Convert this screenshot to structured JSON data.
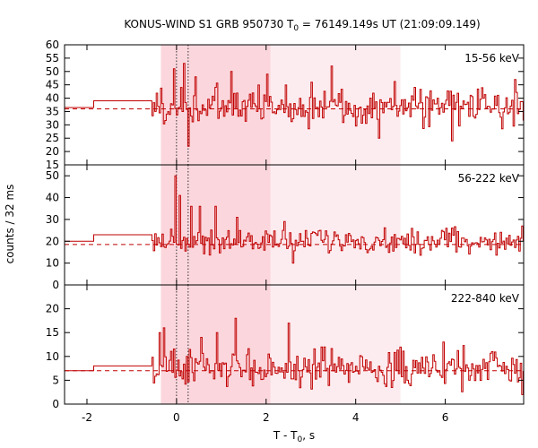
{
  "chart_data": {
    "type": "line",
    "title_main": "KONUS-WIND S1 GRB 950730 T",
    "title_sub": "0",
    "title_rest": " = 76149.149s UT (21:09:09.149)",
    "ylabel": "counts / 32 ms",
    "xlabel_main": "T - T",
    "xlabel_sub": "0",
    "xlabel_rest": ", s",
    "xlim": [
      -2.5,
      7.75
    ],
    "xticks": [
      -2,
      0,
      2,
      4,
      6
    ],
    "xtick_labels": [
      "-2",
      "0",
      "2",
      "4",
      "6"
    ],
    "colors": {
      "series": "#c00000",
      "shade_dark": "#fbd7dd",
      "shade_light": "#fdecef",
      "axis": "#000000"
    },
    "shaded_intervals": [
      {
        "from": -0.35,
        "to": 2.1,
        "tone": "dark"
      },
      {
        "from": 2.1,
        "to": 5.0,
        "tone": "light"
      }
    ],
    "vertical_dotted_lines": [
      0.0,
      0.26
    ],
    "panels": [
      {
        "band": "15-56 keV",
        "ylim": [
          15,
          60
        ],
        "yticks": [
          15,
          20,
          25,
          30,
          35,
          40,
          45,
          50,
          55,
          60
        ],
        "ytick_labels": [
          "15",
          "20",
          "25",
          "30",
          "35",
          "40",
          "45",
          "50",
          "55",
          "60"
        ],
        "background_level": 36.0,
        "pre_trigger_steps": [
          {
            "x_start": -2.5,
            "x_end": -1.85,
            "y": 36.5
          },
          {
            "x_start": -1.85,
            "x_end": -0.55,
            "y": 39.0
          }
        ],
        "series_mean": 37.0,
        "series_noise": 5.5,
        "peaks": [
          {
            "x": -0.06,
            "y": 51
          },
          {
            "x": 0.16,
            "y": 53
          },
          {
            "x": 0.26,
            "y": 22
          },
          {
            "x": 0.4,
            "y": 48
          },
          {
            "x": 1.2,
            "y": 50
          },
          {
            "x": 2.0,
            "y": 49
          },
          {
            "x": 3.0,
            "y": 46
          },
          {
            "x": 3.45,
            "y": 52
          },
          {
            "x": 4.5,
            "y": 25
          },
          {
            "x": 6.15,
            "y": 24
          },
          {
            "x": 7.55,
            "y": 47
          }
        ]
      },
      {
        "band": "56-222 keV",
        "ylim": [
          0,
          55
        ],
        "yticks": [
          0,
          10,
          20,
          30,
          40,
          50
        ],
        "ytick_labels": [
          "0",
          "10",
          "20",
          "30",
          "40",
          "50"
        ],
        "background_level": 18.5,
        "pre_trigger_steps": [
          {
            "x_start": -2.5,
            "x_end": -1.85,
            "y": 20.0
          },
          {
            "x_start": -1.85,
            "x_end": -0.55,
            "y": 23.0
          }
        ],
        "series_mean": 20.0,
        "series_noise": 4.0,
        "peaks": [
          {
            "x": -0.04,
            "y": 50
          },
          {
            "x": 0.06,
            "y": 41
          },
          {
            "x": 0.3,
            "y": 36
          },
          {
            "x": 0.5,
            "y": 36
          },
          {
            "x": 0.85,
            "y": 36
          },
          {
            "x": 1.35,
            "y": 31
          },
          {
            "x": 2.4,
            "y": 29
          },
          {
            "x": 2.6,
            "y": 10
          },
          {
            "x": 3.2,
            "y": 25
          },
          {
            "x": 5.9,
            "y": 25
          },
          {
            "x": 7.7,
            "y": 27
          }
        ]
      },
      {
        "band": "222-840 keV",
        "ylim": [
          0,
          25
        ],
        "yticks": [
          0,
          5,
          10,
          15,
          20
        ],
        "ytick_labels": [
          "0",
          "5",
          "10",
          "15",
          "20"
        ],
        "background_level": 7.0,
        "pre_trigger_steps": [
          {
            "x_start": -2.5,
            "x_end": -1.85,
            "y": 7.0
          },
          {
            "x_start": -1.85,
            "x_end": -0.55,
            "y": 8.0
          }
        ],
        "series_mean": 7.5,
        "series_noise": 2.8,
        "peaks": [
          {
            "x": -0.4,
            "y": 15
          },
          {
            "x": -0.3,
            "y": 16
          },
          {
            "x": 0.55,
            "y": 14
          },
          {
            "x": 0.9,
            "y": 15
          },
          {
            "x": 1.3,
            "y": 18
          },
          {
            "x": 2.5,
            "y": 17
          },
          {
            "x": 3.3,
            "y": 12
          },
          {
            "x": 5.95,
            "y": 13
          },
          {
            "x": 7.05,
            "y": 11
          },
          {
            "x": 7.7,
            "y": 2
          }
        ]
      }
    ]
  }
}
